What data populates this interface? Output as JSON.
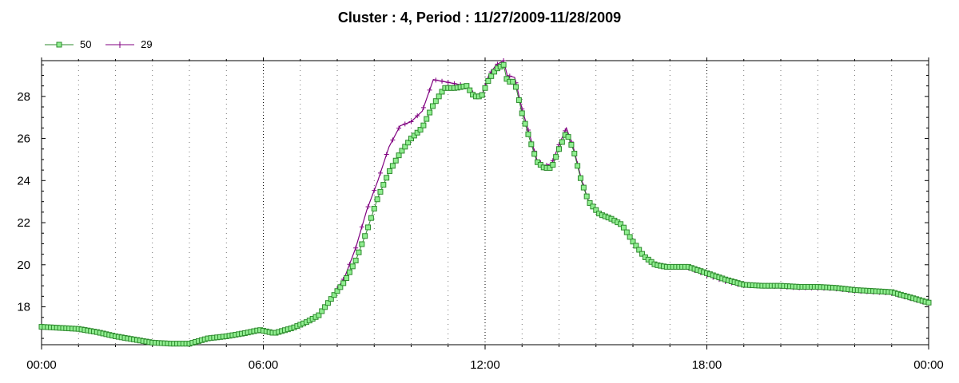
{
  "chart_data": {
    "type": "line",
    "title": "Cluster : 4, Period : 11/27/2009-11/28/2009",
    "xlabel": "",
    "ylabel": "",
    "x_tick_labels": [
      "00:00",
      "06:00",
      "12:00",
      "18:00",
      "00:00"
    ],
    "x_tick_hours": [
      0,
      6,
      12,
      18,
      24
    ],
    "y_ticks": [
      18,
      20,
      22,
      24,
      26,
      28
    ],
    "xlim": [
      0,
      24
    ],
    "ylim": [
      16.2,
      29.7
    ],
    "grid": true,
    "legend_position": "top-left",
    "series": [
      {
        "name": "50",
        "color": "#2e8b2e",
        "fill": "#90ee90",
        "marker": "square",
        "points": [
          [
            0,
            17.05
          ],
          [
            0.5,
            17.0
          ],
          [
            1,
            16.95
          ],
          [
            1.5,
            16.8
          ],
          [
            2,
            16.6
          ],
          [
            2.5,
            16.45
          ],
          [
            3,
            16.3
          ],
          [
            3.5,
            16.25
          ],
          [
            4,
            16.25
          ],
          [
            4.5,
            16.5
          ],
          [
            5,
            16.6
          ],
          [
            5.5,
            16.75
          ],
          [
            5.9,
            16.9
          ],
          [
            6.3,
            16.75
          ],
          [
            6.8,
            17.0
          ],
          [
            7.2,
            17.3
          ],
          [
            7.5,
            17.6
          ],
          [
            7.8,
            18.3
          ],
          [
            8.2,
            19.2
          ],
          [
            8.5,
            20.2
          ],
          [
            8.8,
            21.6
          ],
          [
            9.1,
            23.2
          ],
          [
            9.4,
            24.4
          ],
          [
            9.7,
            25.3
          ],
          [
            10,
            26.0
          ],
          [
            10.3,
            26.5
          ],
          [
            10.6,
            27.6
          ],
          [
            10.9,
            28.4
          ],
          [
            11.2,
            28.4
          ],
          [
            11.5,
            28.5
          ],
          [
            11.7,
            28.0
          ],
          [
            11.9,
            28.0
          ],
          [
            12.1,
            28.8
          ],
          [
            12.3,
            29.3
          ],
          [
            12.5,
            29.5
          ],
          [
            12.6,
            28.7
          ],
          [
            12.8,
            28.7
          ],
          [
            13,
            27.2
          ],
          [
            13.2,
            26.0
          ],
          [
            13.4,
            24.9
          ],
          [
            13.6,
            24.6
          ],
          [
            13.8,
            24.6
          ],
          [
            14,
            25.5
          ],
          [
            14.2,
            26.3
          ],
          [
            14.4,
            25.4
          ],
          [
            14.6,
            24.0
          ],
          [
            14.8,
            23.0
          ],
          [
            15.1,
            22.4
          ],
          [
            15.4,
            22.2
          ],
          [
            15.7,
            21.9
          ],
          [
            16,
            21.1
          ],
          [
            16.3,
            20.4
          ],
          [
            16.6,
            20.0
          ],
          [
            16.9,
            19.9
          ],
          [
            17.2,
            19.9
          ],
          [
            17.5,
            19.9
          ],
          [
            18,
            19.6
          ],
          [
            18.5,
            19.3
          ],
          [
            19,
            19.05
          ],
          [
            19.5,
            19.0
          ],
          [
            20,
            19.0
          ],
          [
            20.5,
            18.95
          ],
          [
            21,
            18.95
          ],
          [
            21.5,
            18.9
          ],
          [
            22,
            18.8
          ],
          [
            22.5,
            18.75
          ],
          [
            23,
            18.7
          ],
          [
            23.5,
            18.45
          ],
          [
            24,
            18.2
          ]
        ]
      },
      {
        "name": "29",
        "color": "#800080",
        "marker": "plus",
        "points": [
          [
            0,
            17.05
          ],
          [
            0.5,
            17.0
          ],
          [
            1,
            16.95
          ],
          [
            1.5,
            16.8
          ],
          [
            2,
            16.6
          ],
          [
            2.5,
            16.45
          ],
          [
            3,
            16.3
          ],
          [
            3.5,
            16.25
          ],
          [
            4,
            16.25
          ],
          [
            4.5,
            16.5
          ],
          [
            5,
            16.6
          ],
          [
            5.5,
            16.75
          ],
          [
            5.9,
            16.9
          ],
          [
            6.3,
            16.75
          ],
          [
            6.8,
            17.0
          ],
          [
            7.2,
            17.3
          ],
          [
            7.5,
            17.6
          ],
          [
            7.8,
            18.3
          ],
          [
            8.2,
            19.4
          ],
          [
            8.5,
            20.8
          ],
          [
            8.8,
            22.6
          ],
          [
            9.1,
            24.0
          ],
          [
            9.4,
            25.6
          ],
          [
            9.7,
            26.6
          ],
          [
            10,
            26.8
          ],
          [
            10.3,
            27.3
          ],
          [
            10.6,
            28.8
          ],
          [
            10.9,
            28.7
          ],
          [
            11.2,
            28.6
          ],
          [
            11.5,
            28.5
          ],
          [
            11.7,
            28.1
          ],
          [
            11.9,
            28.0
          ],
          [
            12.1,
            29.0
          ],
          [
            12.3,
            29.5
          ],
          [
            12.5,
            29.7
          ],
          [
            12.6,
            29.0
          ],
          [
            12.8,
            28.9
          ],
          [
            13,
            27.4
          ],
          [
            13.2,
            26.2
          ],
          [
            13.4,
            25.0
          ],
          [
            13.6,
            24.7
          ],
          [
            13.8,
            24.8
          ],
          [
            14,
            25.7
          ],
          [
            14.2,
            26.5
          ],
          [
            14.4,
            25.5
          ],
          [
            14.6,
            24.1
          ],
          [
            14.8,
            23.0
          ],
          [
            15.1,
            22.4
          ],
          [
            15.4,
            22.2
          ],
          [
            15.7,
            21.9
          ],
          [
            16,
            21.1
          ],
          [
            16.3,
            20.4
          ],
          [
            16.6,
            20.0
          ],
          [
            16.9,
            19.9
          ],
          [
            17.2,
            19.9
          ],
          [
            17.5,
            19.85
          ],
          [
            18,
            19.5
          ],
          [
            18.5,
            19.2
          ],
          [
            19,
            19.0
          ],
          [
            19.5,
            19.0
          ],
          [
            20,
            18.95
          ],
          [
            20.5,
            18.9
          ],
          [
            21,
            18.9
          ],
          [
            21.5,
            18.85
          ],
          [
            22,
            18.75
          ],
          [
            22.5,
            18.7
          ],
          [
            23,
            18.65
          ],
          [
            23.5,
            18.4
          ],
          [
            24,
            18.15
          ]
        ]
      }
    ]
  }
}
